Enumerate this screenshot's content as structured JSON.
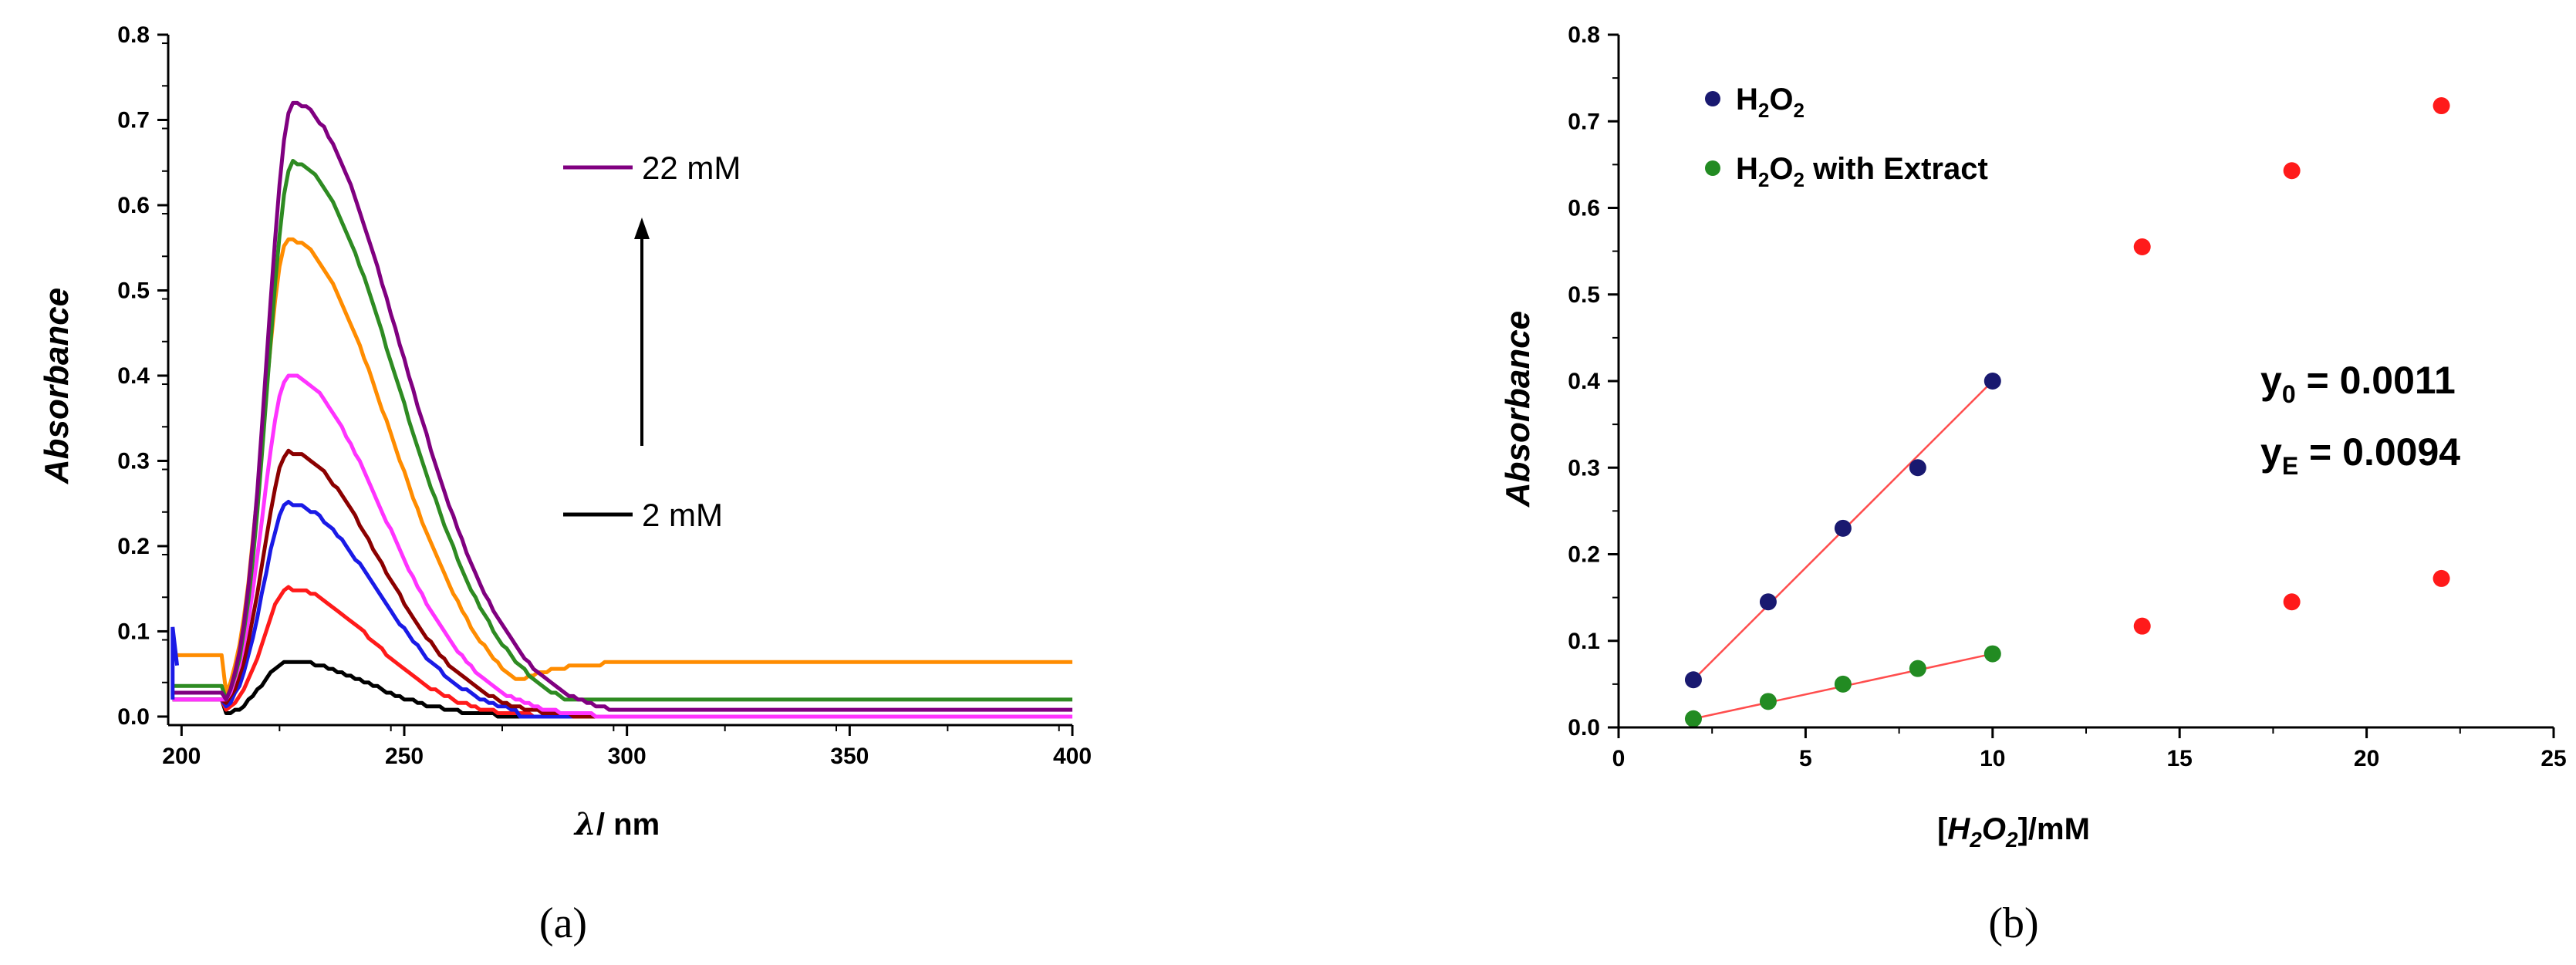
{
  "chart_data": [
    {
      "type": "line",
      "panel_label": "(a)",
      "xlabel_symbol": "λ",
      "xlabel_unit": "/ nm",
      "ylabel": "Absorbance",
      "xlim": [
        197,
        400
      ],
      "ylim": [
        -0.01,
        0.8
      ],
      "xticks": [
        "200",
        "250",
        "300",
        "350",
        "400"
      ],
      "yticks": [
        "0.0",
        "0.1",
        "0.2",
        "0.3",
        "0.4",
        "0.5",
        "0.6",
        "0.7",
        "0.8"
      ],
      "grid": false,
      "annotations": {
        "high_label": "22 mM",
        "low_label": "2 mM"
      },
      "series": [
        {
          "color": "#000000",
          "peak": 0.065,
          "tail": 0.0,
          "zero_at": 285,
          "peak_x": 224
        },
        {
          "color": "#ff1a1a",
          "peak": 0.15,
          "tail": 0.0,
          "zero_at": 296,
          "peak_x": 224
        },
        {
          "color": "#1a1ae6",
          "peak": 0.25,
          "tail": 0.0,
          "zero_at": 275,
          "peak_x": 224
        },
        {
          "color": "#8b0000",
          "peak": 0.31,
          "tail": 0.0,
          "zero_at": 300,
          "peak_x": 224
        },
        {
          "color": "#ff33ff",
          "peak": 0.4,
          "tail": 0.0,
          "zero_at": 300,
          "peak_x": 224
        },
        {
          "color": "#ff8c00",
          "peak": 0.56,
          "tail": 0.065,
          "zero_at": null,
          "peak_x": 224
        },
        {
          "color": "#2e8b22",
          "peak": 0.65,
          "tail": 0.02,
          "zero_at": null,
          "peak_x": 225
        },
        {
          "color": "#800080",
          "peak": 0.72,
          "tail": 0.01,
          "zero_at": null,
          "peak_x": 225
        }
      ],
      "legend_colors": {
        "high": "#800080",
        "low": "#000000"
      }
    },
    {
      "type": "scatter",
      "panel_label": "(b)",
      "xlabel_prefix": "[",
      "xlabel_main": "H",
      "xlabel_sub1": "2",
      "xlabel_mid": "O",
      "xlabel_sub2": "2",
      "xlabel_suffix": "]/mM",
      "ylabel": "Absorbance",
      "xlim": [
        0,
        25
      ],
      "ylim": [
        0,
        0.8
      ],
      "xticks": [
        "0",
        "5",
        "10",
        "15",
        "20",
        "25"
      ],
      "yticks": [
        "0.0",
        "0.1",
        "0.2",
        "0.3",
        "0.4",
        "0.5",
        "0.6",
        "0.7",
        "0.8"
      ],
      "grid": false,
      "legend_position": "top-left",
      "legend": [
        {
          "color": "#191970",
          "main": "H",
          "sub1": "2",
          "mid": "O",
          "sub2": "2",
          "tail": ""
        },
        {
          "color": "#228b22",
          "main": "H",
          "sub1": "2",
          "mid": "O",
          "sub2": "2",
          "tail": " with Extract"
        }
      ],
      "series": [
        {
          "name": "H2O2",
          "color": "#191970",
          "points": [
            [
              2,
              0.055
            ],
            [
              4,
              0.145
            ],
            [
              6,
              0.23
            ],
            [
              8,
              0.3
            ],
            [
              10,
              0.4
            ]
          ]
        },
        {
          "name": "H2O2 with Extract",
          "color": "#228b22",
          "points": [
            [
              2,
              0.01
            ],
            [
              4,
              0.03
            ],
            [
              6,
              0.05
            ],
            [
              8,
              0.068
            ],
            [
              10,
              0.085
            ]
          ]
        },
        {
          "name": "",
          "color": "#ff1a1a",
          "points": [
            [
              14,
              0.555
            ],
            [
              18,
              0.643
            ],
            [
              22,
              0.718
            ],
            [
              14,
              0.117
            ],
            [
              18,
              0.145
            ],
            [
              22,
              0.172
            ]
          ]
        }
      ],
      "fit_lines": [
        {
          "color": "#ff4d4d",
          "from": [
            2,
            0.055
          ],
          "to": [
            10,
            0.4
          ]
        },
        {
          "color": "#ff4d4d",
          "from": [
            2,
            0.01
          ],
          "to": [
            10,
            0.085
          ]
        }
      ],
      "fit_text": [
        {
          "main": "y",
          "sub": "0",
          "value": " = 0.0011"
        },
        {
          "main": "y",
          "sub": "E",
          "value": " = 0.0094"
        }
      ]
    }
  ]
}
